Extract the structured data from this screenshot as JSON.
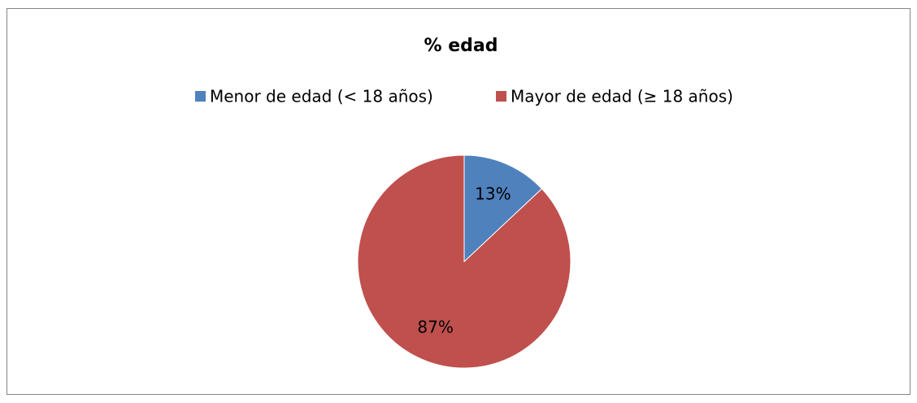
{
  "chart_data": {
    "type": "pie",
    "title": "% edad",
    "categories": [
      "Menor de edad (< 18 años)",
      "Mayor de edad (≥ 18 años)"
    ],
    "values": [
      13,
      87
    ],
    "value_labels": [
      "13%",
      "87%"
    ],
    "colors": [
      "#4f81bd",
      "#c0504d"
    ],
    "legend": "top"
  }
}
